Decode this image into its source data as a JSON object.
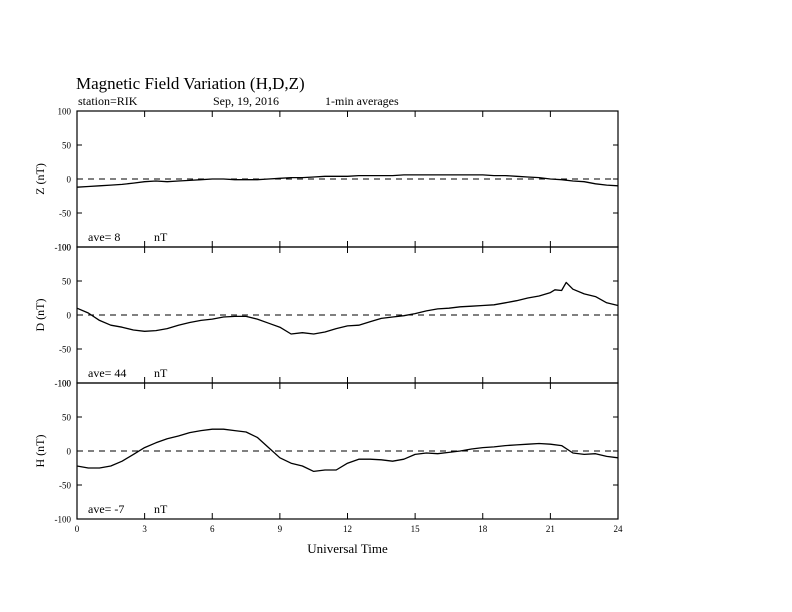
{
  "header": {
    "title": "Magnetic Field Variation (H,D,Z)",
    "station": "station=RIK",
    "date": "Sep, 19, 2016",
    "averaging": "1-min averages"
  },
  "chart_data": {
    "type": "line",
    "xlabel": "Universal Time",
    "xlim": [
      0,
      24
    ],
    "xticks": [
      0,
      3,
      6,
      9,
      12,
      15,
      18,
      21,
      24
    ],
    "ave_unit": "nT",
    "panels": [
      {
        "component": "Z",
        "ylabel": "Z (nT)",
        "ylim": [
          -100,
          100
        ],
        "yticks": [
          100,
          50,
          0,
          -50,
          -100
        ],
        "ave_label": "ave= 8",
        "baseline": 0,
        "series": {
          "x": [
            0,
            0.5,
            1,
            1.5,
            2,
            2.5,
            3,
            3.5,
            4,
            4.5,
            5,
            5.5,
            6,
            6.5,
            7,
            7.5,
            8,
            8.5,
            9,
            9.5,
            10,
            10.5,
            11,
            11.5,
            12,
            12.5,
            13,
            13.5,
            14,
            14.5,
            15,
            15.5,
            16,
            16.5,
            17,
            17.5,
            18,
            18.5,
            19,
            19.5,
            20,
            20.5,
            21,
            21.5,
            22,
            22.5,
            23,
            23.5,
            24
          ],
          "y": [
            -12,
            -11,
            -10,
            -9,
            -8,
            -6,
            -4,
            -3,
            -4,
            -3,
            -2,
            -1,
            0,
            0,
            -1,
            -1,
            -1,
            0,
            1,
            2,
            2,
            3,
            4,
            4,
            4,
            5,
            5,
            5,
            5,
            6,
            6,
            6,
            6,
            6,
            6,
            6,
            6,
            5,
            5,
            4,
            3,
            2,
            0,
            -1,
            -3,
            -4,
            -7,
            -9,
            -10
          ]
        }
      },
      {
        "component": "D",
        "ylabel": "D (nT)",
        "ylim": [
          -100,
          100
        ],
        "yticks": [
          100,
          50,
          0,
          -50,
          -100
        ],
        "ave_label": "ave= 44",
        "baseline": 0,
        "series": {
          "x": [
            0,
            0.5,
            1,
            1.5,
            2,
            2.5,
            3,
            3.5,
            4,
            4.5,
            5,
            5.5,
            6,
            6.5,
            7,
            7.5,
            8,
            8.5,
            9,
            9.5,
            10,
            10.5,
            11,
            11.5,
            12,
            12.5,
            13,
            13.5,
            14,
            14.5,
            15,
            15.5,
            16,
            16.5,
            17,
            17.5,
            18,
            18.5,
            19,
            19.5,
            20,
            20.5,
            21,
            21.2,
            21.5,
            21.7,
            22,
            22.5,
            23,
            23.5,
            24
          ],
          "y": [
            10,
            3,
            -8,
            -15,
            -18,
            -22,
            -24,
            -23,
            -20,
            -15,
            -11,
            -8,
            -6,
            -3,
            -2,
            -2,
            -6,
            -12,
            -18,
            -28,
            -26,
            -28,
            -25,
            -20,
            -16,
            -15,
            -10,
            -5,
            -3,
            -1,
            2,
            6,
            9,
            10,
            12,
            13,
            14,
            15,
            18,
            21,
            25,
            28,
            33,
            37,
            36,
            48,
            38,
            31,
            27,
            18,
            14
          ]
        }
      },
      {
        "component": "H",
        "ylabel": "H (nT)",
        "ylim": [
          -100,
          100
        ],
        "yticks": [
          100,
          50,
          0,
          -50,
          -100
        ],
        "ave_label": "ave= -7",
        "baseline": 0,
        "series": {
          "x": [
            0,
            0.5,
            1,
            1.5,
            2,
            2.5,
            3,
            3.5,
            4,
            4.5,
            5,
            5.5,
            6,
            6.5,
            7,
            7.5,
            8,
            8.5,
            9,
            9.5,
            10,
            10.5,
            11,
            11.5,
            12,
            12.5,
            13,
            13.5,
            14,
            14.5,
            15,
            15.5,
            16,
            16.5,
            17,
            17.5,
            18,
            18.5,
            19,
            19.5,
            20,
            20.5,
            21,
            21.5,
            22,
            22.5,
            23,
            23.5,
            24
          ],
          "y": [
            -22,
            -25,
            -25,
            -22,
            -15,
            -5,
            5,
            12,
            18,
            22,
            27,
            30,
            32,
            32,
            30,
            28,
            20,
            5,
            -10,
            -18,
            -22,
            -30,
            -28,
            -28,
            -18,
            -12,
            -12,
            -13,
            -15,
            -12,
            -5,
            -3,
            -4,
            -2,
            0,
            3,
            5,
            6,
            8,
            9,
            10,
            11,
            10,
            8,
            -3,
            -5,
            -4,
            -8,
            -10
          ]
        }
      }
    ]
  }
}
